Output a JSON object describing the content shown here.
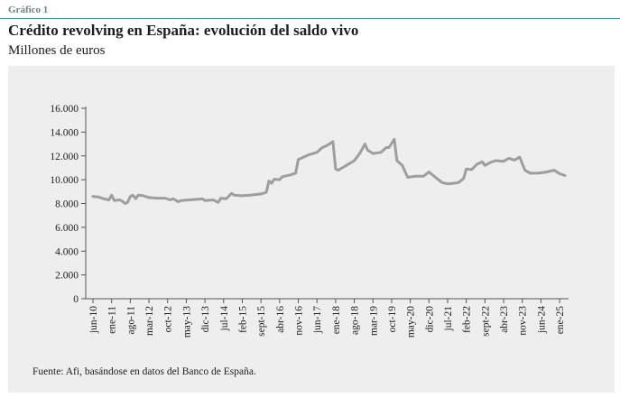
{
  "header": {
    "figure_label": "Gráfico 1",
    "title": "Crédito revolving en España: evolución del saldo vivo",
    "subtitle": "Millones de euros"
  },
  "footer": {
    "source": "Fuente: Afi, basándose en datos del Banco de España."
  },
  "colors": {
    "accent": "#4a9aa4",
    "line": "#9e9e9e",
    "panel_bg": "#eeeeee",
    "axis": "#555555"
  },
  "chart_data": {
    "type": "line",
    "title": "",
    "xlabel": "",
    "ylabel": "",
    "ylim": [
      0,
      16000
    ],
    "yticks": [
      0,
      2000,
      4000,
      6000,
      8000,
      10000,
      12000,
      14000,
      16000
    ],
    "ytick_labels": [
      "0",
      "2.000",
      "4.000",
      "6.000",
      "8.000",
      "10.000",
      "12.000",
      "14.000",
      "16.000"
    ],
    "grid": false,
    "legend": "none",
    "xticks": [
      {
        "label": "jun-10",
        "date": "2010-06"
      },
      {
        "label": "ene-11",
        "date": "2011-01"
      },
      {
        "label": "ago-11",
        "date": "2011-08"
      },
      {
        "label": "mar-12",
        "date": "2012-03"
      },
      {
        "label": "oct-12",
        "date": "2012-10"
      },
      {
        "label": "may-13",
        "date": "2013-05"
      },
      {
        "label": "dic-13",
        "date": "2013-12"
      },
      {
        "label": "jul-14",
        "date": "2014-07"
      },
      {
        "label": "feb-15",
        "date": "2015-02"
      },
      {
        "label": "sept-15",
        "date": "2015-09"
      },
      {
        "label": "abr-16",
        "date": "2016-04"
      },
      {
        "label": "nov-16",
        "date": "2016-11"
      },
      {
        "label": "jun-17",
        "date": "2017-06"
      },
      {
        "label": "ene-18",
        "date": "2018-01"
      },
      {
        "label": "ago-18",
        "date": "2018-08"
      },
      {
        "label": "mar-19",
        "date": "2019-03"
      },
      {
        "label": "oct-19",
        "date": "2019-10"
      },
      {
        "label": "may-20",
        "date": "2020-05"
      },
      {
        "label": "dic-20",
        "date": "2020-12"
      },
      {
        "label": "jul-21",
        "date": "2021-07"
      },
      {
        "label": "feb-22",
        "date": "2022-02"
      },
      {
        "label": "sept-22",
        "date": "2022-09"
      },
      {
        "label": "abr-23",
        "date": "2023-04"
      },
      {
        "label": "nov-23",
        "date": "2023-11"
      },
      {
        "label": "jun-24",
        "date": "2024-06"
      },
      {
        "label": "ene-25",
        "date": "2025-01"
      }
    ],
    "series": [
      {
        "points": [
          [
            "2010-06",
            8600
          ],
          [
            "2010-08",
            8550
          ],
          [
            "2010-10",
            8400
          ],
          [
            "2010-12",
            8300
          ],
          [
            "2011-01",
            8700
          ],
          [
            "2011-02",
            8250
          ],
          [
            "2011-04",
            8300
          ],
          [
            "2011-05",
            8200
          ],
          [
            "2011-06",
            8000
          ],
          [
            "2011-07",
            8100
          ],
          [
            "2011-08",
            8600
          ],
          [
            "2011-09",
            8700
          ],
          [
            "2011-10",
            8400
          ],
          [
            "2011-11",
            8700
          ],
          [
            "2012-01",
            8650
          ],
          [
            "2012-03",
            8500
          ],
          [
            "2012-06",
            8450
          ],
          [
            "2012-09",
            8450
          ],
          [
            "2012-11",
            8300
          ],
          [
            "2012-12",
            8400
          ],
          [
            "2013-02",
            8150
          ],
          [
            "2013-03",
            8250
          ],
          [
            "2013-06",
            8300
          ],
          [
            "2013-09",
            8350
          ],
          [
            "2013-11",
            8400
          ],
          [
            "2013-12",
            8250
          ],
          [
            "2014-03",
            8300
          ],
          [
            "2014-05",
            8100
          ],
          [
            "2014-06",
            8450
          ],
          [
            "2014-08",
            8400
          ],
          [
            "2014-10",
            8850
          ],
          [
            "2014-11",
            8700
          ],
          [
            "2015-02",
            8650
          ],
          [
            "2015-05",
            8700
          ],
          [
            "2015-09",
            8800
          ],
          [
            "2015-11",
            8950
          ],
          [
            "2015-12",
            9900
          ],
          [
            "2016-01",
            9700
          ],
          [
            "2016-02",
            10050
          ],
          [
            "2016-04",
            10000
          ],
          [
            "2016-05",
            10250
          ],
          [
            "2016-08",
            10400
          ],
          [
            "2016-10",
            10550
          ],
          [
            "2016-11",
            11700
          ],
          [
            "2017-01",
            11900
          ],
          [
            "2017-03",
            12100
          ],
          [
            "2017-06",
            12300
          ],
          [
            "2017-08",
            12700
          ],
          [
            "2017-10",
            12900
          ],
          [
            "2017-12",
            13200
          ],
          [
            "2018-01",
            10900
          ],
          [
            "2018-02",
            10800
          ],
          [
            "2018-05",
            11200
          ],
          [
            "2018-08",
            11600
          ],
          [
            "2018-10",
            12200
          ],
          [
            "2018-12",
            13000
          ],
          [
            "2019-01",
            12500
          ],
          [
            "2019-03",
            12200
          ],
          [
            "2019-06",
            12300
          ],
          [
            "2019-08",
            12700
          ],
          [
            "2019-09",
            12700
          ],
          [
            "2019-11",
            13400
          ],
          [
            "2019-12",
            11600
          ],
          [
            "2020-02",
            11200
          ],
          [
            "2020-04",
            10200
          ],
          [
            "2020-07",
            10300
          ],
          [
            "2020-10",
            10300
          ],
          [
            "2020-12",
            10650
          ],
          [
            "2021-03",
            10100
          ],
          [
            "2021-05",
            9750
          ],
          [
            "2021-07",
            9650
          ],
          [
            "2021-09",
            9700
          ],
          [
            "2021-11",
            9750
          ],
          [
            "2022-01",
            10100
          ],
          [
            "2022-02",
            10900
          ],
          [
            "2022-04",
            10850
          ],
          [
            "2022-06",
            11300
          ],
          [
            "2022-08",
            11500
          ],
          [
            "2022-09",
            11200
          ],
          [
            "2022-11",
            11450
          ],
          [
            "2023-01",
            11600
          ],
          [
            "2023-04",
            11550
          ],
          [
            "2023-06",
            11800
          ],
          [
            "2023-08",
            11650
          ],
          [
            "2023-10",
            11900
          ],
          [
            "2023-12",
            10800
          ],
          [
            "2024-02",
            10550
          ],
          [
            "2024-05",
            10550
          ],
          [
            "2024-08",
            10650
          ],
          [
            "2024-11",
            10800
          ],
          [
            "2025-01",
            10500
          ],
          [
            "2025-03",
            10350
          ]
        ]
      }
    ]
  }
}
